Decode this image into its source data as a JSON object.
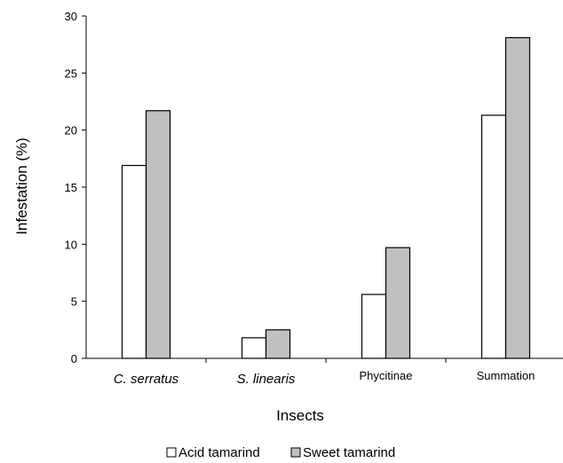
{
  "chart_data": {
    "type": "bar",
    "title": "",
    "xlabel": "Insects",
    "ylabel": "Infestation (%)",
    "ylim": [
      0,
      30
    ],
    "yticks": [
      0,
      5,
      10,
      15,
      20,
      25,
      30
    ],
    "categories": [
      "C. serratus",
      "S. linearis",
      "Phycitinae",
      "Summation"
    ],
    "category_italic": [
      true,
      true,
      false,
      false
    ],
    "series": [
      {
        "name": "Acid tamarind",
        "values": [
          16.9,
          1.8,
          5.6,
          21.3
        ],
        "color": "#ffffff"
      },
      {
        "name": "Sweet tamarind",
        "values": [
          21.7,
          2.5,
          9.7,
          28.1
        ],
        "color": "#c0c0c0"
      }
    ],
    "grid": false,
    "legend": "bottom"
  }
}
